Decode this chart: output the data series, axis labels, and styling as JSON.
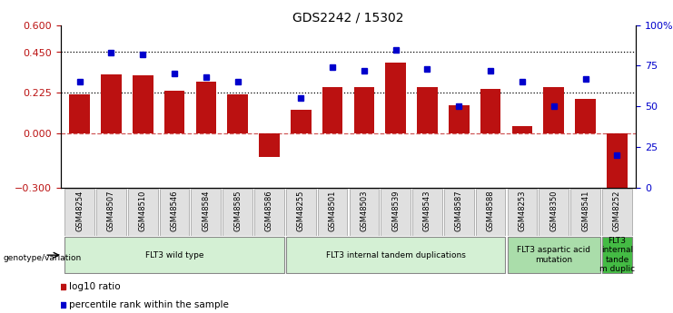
{
  "title": "GDS2242 / 15302",
  "samples": [
    "GSM48254",
    "GSM48507",
    "GSM48510",
    "GSM48546",
    "GSM48584",
    "GSM48585",
    "GSM48586",
    "GSM48255",
    "GSM48501",
    "GSM48503",
    "GSM48539",
    "GSM48543",
    "GSM48587",
    "GSM48588",
    "GSM48253",
    "GSM48350",
    "GSM48541",
    "GSM48252"
  ],
  "log10_ratio": [
    0.215,
    0.325,
    0.32,
    0.235,
    0.285,
    0.215,
    -0.13,
    0.13,
    0.255,
    0.255,
    0.39,
    0.255,
    0.155,
    0.245,
    0.04,
    0.255,
    0.19,
    -0.38
  ],
  "percentile": [
    65,
    83,
    82,
    70,
    68,
    65,
    null,
    55,
    74,
    72,
    85,
    73,
    50,
    72,
    65,
    50,
    67,
    20
  ],
  "ylim_left": [
    -0.3,
    0.6
  ],
  "ylim_right": [
    0,
    100
  ],
  "yticks_left": [
    -0.3,
    0,
    0.225,
    0.45,
    0.6
  ],
  "yticks_right": [
    0,
    25,
    50,
    75,
    100
  ],
  "hline_dotted": [
    0.225,
    0.45
  ],
  "hline_dashed": 0.0,
  "bar_color": "#bb1111",
  "dot_color": "#0000cc",
  "bar_width": 0.65,
  "groups": [
    {
      "label": "FLT3 wild type",
      "start": 0,
      "end": 6,
      "color": "#d4f0d4"
    },
    {
      "label": "FLT3 internal tandem duplications",
      "start": 7,
      "end": 13,
      "color": "#d4f0d4"
    },
    {
      "label": "FLT3 aspartic acid\nmutation",
      "start": 14,
      "end": 16,
      "color": "#aaddaa"
    },
    {
      "label": "FLT3\ninternal\ntande\nm duplic",
      "start": 17,
      "end": 17,
      "color": "#44bb44"
    }
  ]
}
